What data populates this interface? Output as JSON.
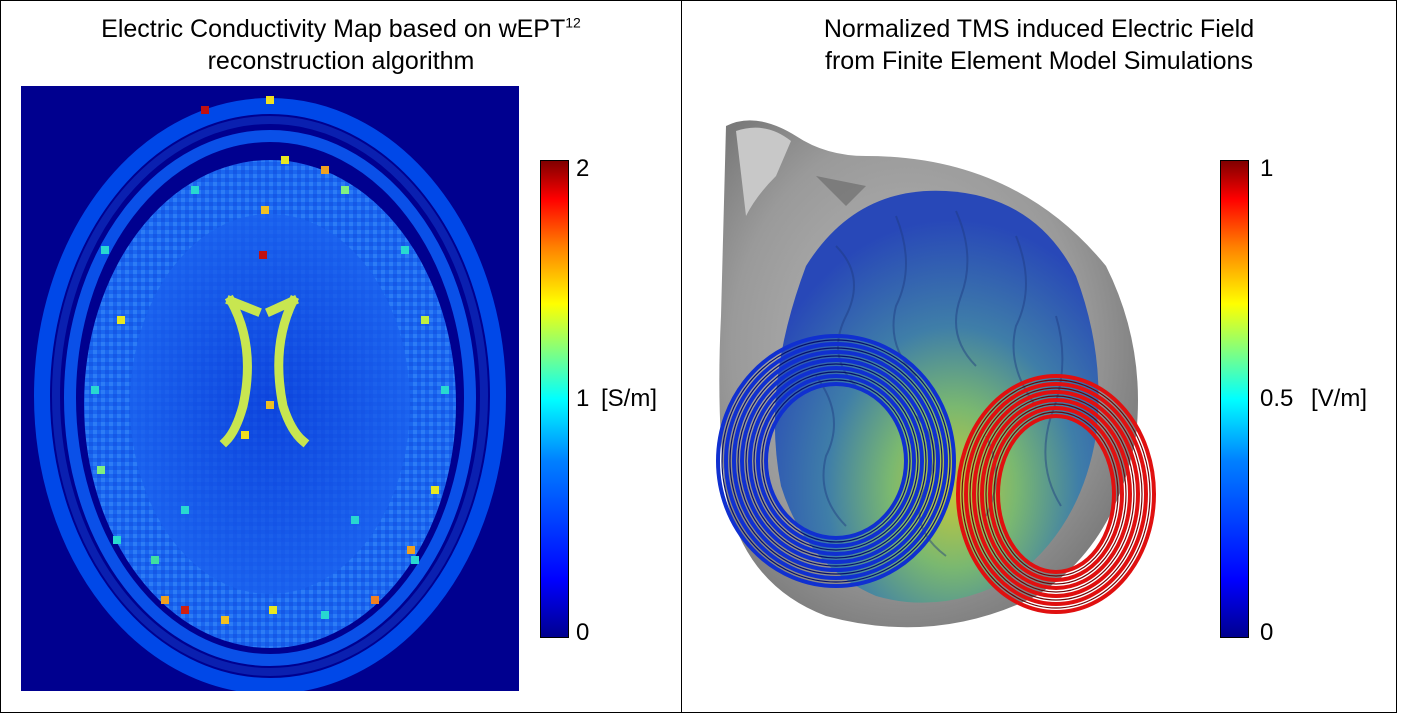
{
  "left_panel": {
    "title_line1": "Electric Conductivity Map based on wEPT",
    "title_superscript": "12",
    "title_line2": "reconstruction algorithm",
    "colorbar": {
      "tick_max": "2",
      "tick_mid": "1",
      "tick_min": "0",
      "unit": "[S/m]",
      "colormap": "jet"
    },
    "image_description_colors": {
      "background": "#00008f",
      "skull_ring": "#0040e0",
      "tissue": "#1a64f0",
      "ventricle": "#c8e650"
    }
  },
  "right_panel": {
    "title_line1": "Normalized TMS induced Electric Field",
    "title_line2": "from Finite Element Model Simulations",
    "colorbar": {
      "tick_max": "1",
      "tick_mid": "0.5",
      "tick_min": "0",
      "unit": "[V/m]",
      "colormap": "jet"
    },
    "coil_colors": {
      "left_coil": "#1030d0",
      "right_coil": "#e01010"
    }
  }
}
